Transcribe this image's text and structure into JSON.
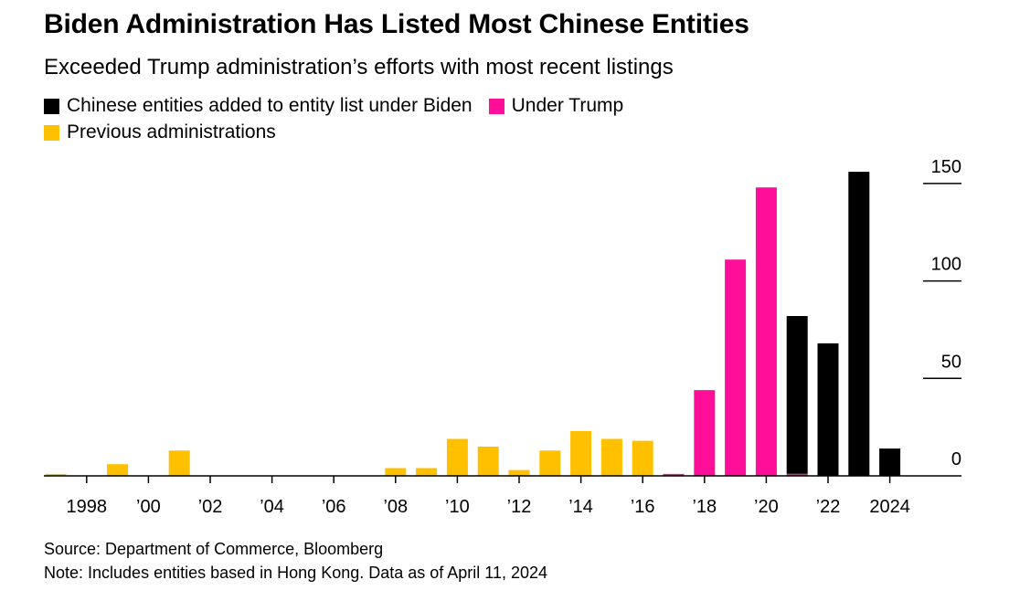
{
  "title": "Biden Administration Has Listed Most Chinese Entities",
  "subtitle": "Exceeded Trump administration’s efforts with most recent listings",
  "legend": [
    {
      "label": "Chinese entities added to entity list under Biden",
      "color": "#000000"
    },
    {
      "label": "Under Trump",
      "color": "#ff0e99"
    },
    {
      "label": "Previous administrations",
      "color": "#ffc000"
    }
  ],
  "source": "Source: Department of Commerce, Bloomberg",
  "note": "Note: Includes entities based in Hong Kong. Data as of April 11, 2024",
  "chart_data": {
    "type": "bar",
    "stacked": true,
    "x": [
      1997,
      1998,
      1999,
      2000,
      2001,
      2002,
      2003,
      2004,
      2005,
      2006,
      2007,
      2008,
      2009,
      2010,
      2011,
      2012,
      2013,
      2014,
      2015,
      2016,
      2017,
      2018,
      2019,
      2020,
      2021,
      2022,
      2023,
      2024
    ],
    "series": [
      {
        "name": "Previous administrations",
        "color": "#ffc000",
        "values": [
          1,
          0,
          6,
          0,
          13,
          0,
          0,
          0,
          0,
          0,
          0,
          4,
          4,
          19,
          15,
          3,
          13,
          23,
          19,
          18,
          0,
          0,
          0,
          0,
          0,
          0,
          0,
          0
        ]
      },
      {
        "name": "Under Trump",
        "color": "#ff0e99",
        "values": [
          0,
          0,
          0,
          0,
          0,
          0,
          0,
          0,
          0,
          0,
          0,
          0,
          0,
          0,
          0,
          0,
          0,
          0,
          0,
          0,
          1,
          44,
          111,
          148,
          1,
          0,
          0,
          0
        ]
      },
      {
        "name": "Chinese entities added to entity list under Biden",
        "color": "#000000",
        "values": [
          0,
          0,
          0,
          0,
          0,
          0,
          0,
          0,
          0,
          0,
          0,
          0,
          0,
          0,
          0,
          0,
          0,
          0,
          0,
          0,
          0,
          0,
          0,
          0,
          81,
          68,
          156,
          14
        ]
      }
    ],
    "x_tick_labels": [
      {
        "year": 1998,
        "label": "1998"
      },
      {
        "year": 2000,
        "label": "’00"
      },
      {
        "year": 2002,
        "label": "’02"
      },
      {
        "year": 2004,
        "label": "’04"
      },
      {
        "year": 2006,
        "label": "’06"
      },
      {
        "year": 2008,
        "label": "’08"
      },
      {
        "year": 2010,
        "label": "’10"
      },
      {
        "year": 2012,
        "label": "’12"
      },
      {
        "year": 2014,
        "label": "’14"
      },
      {
        "year": 2016,
        "label": "’16"
      },
      {
        "year": 2018,
        "label": "’18"
      },
      {
        "year": 2020,
        "label": "’20"
      },
      {
        "year": 2022,
        "label": "’22"
      },
      {
        "year": 2024,
        "label": "2024"
      }
    ],
    "y_ticks": [
      0,
      50,
      100,
      150
    ],
    "ylim": [
      0,
      157
    ],
    "y_axis_position": "right",
    "grid": false
  }
}
